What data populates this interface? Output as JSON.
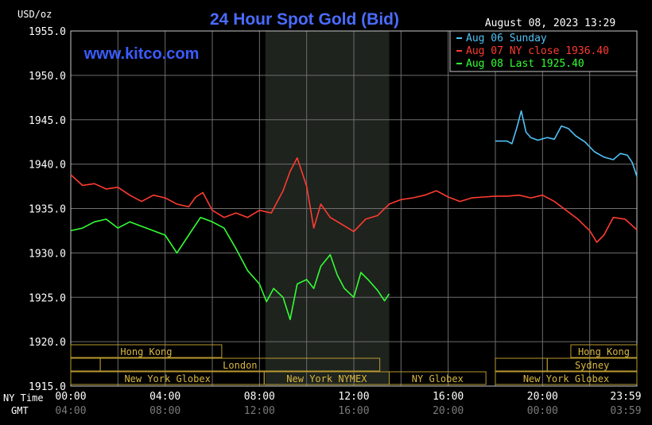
{
  "chart_data": {
    "type": "line",
    "title": "24 Hour Spot Gold (Bid)",
    "unit_label": "USD/oz",
    "watermark": "www.kitco.com",
    "timestamp": "August 08, 2023 13:29",
    "ylim": [
      1915,
      1955
    ],
    "yticks": [
      "1955.0",
      "1950.0",
      "1945.0",
      "1940.0",
      "1935.0",
      "1930.0",
      "1925.0",
      "1920.0",
      "1915.0"
    ],
    "ytick_values": [
      1955,
      1950,
      1945,
      1940,
      1935,
      1930,
      1925,
      1920,
      1915
    ],
    "xlim": [
      0,
      24
    ],
    "xlabel_ny": "NY Time",
    "xlabel_gmt": "GMT",
    "xticks": [
      {
        "h": 0,
        "ny": "00:00",
        "gmt": "04:00"
      },
      {
        "h": 4,
        "ny": "04:00",
        "gmt": "08:00"
      },
      {
        "h": 8,
        "ny": "08:00",
        "gmt": "12:00"
      },
      {
        "h": 12,
        "ny": "12:00",
        "gmt": "16:00"
      },
      {
        "h": 16,
        "ny": "16:00",
        "gmt": "20:00"
      },
      {
        "h": 20,
        "ny": "20:00",
        "gmt": "00:00"
      },
      {
        "h": 24,
        "ny": "23:59",
        "gmt": "03:59"
      }
    ],
    "highlight_range": [
      8.25,
      13.5
    ],
    "legend": [
      {
        "label": "Aug 06 Sunday",
        "color": "#4fc3f7"
      },
      {
        "label": "Aug 07 NY close 1936.40",
        "color": "#ff3b30"
      },
      {
        "label": "Aug 08 Last 1925.40",
        "color": "#33ff33"
      }
    ],
    "series": [
      {
        "name": "Aug 06 Sunday",
        "color": "#4fc3f7",
        "x": [
          18.0,
          18.5,
          18.7,
          18.9,
          19.1,
          19.3,
          19.5,
          19.8,
          20.2,
          20.5,
          20.8,
          21.1,
          21.4,
          21.8,
          22.2,
          22.6,
          23.0,
          23.3,
          23.6,
          23.8,
          24.0
        ],
        "y": [
          1942.6,
          1942.6,
          1942.3,
          1944.0,
          1946.0,
          1943.6,
          1943.0,
          1942.7,
          1943.0,
          1942.8,
          1944.3,
          1944.0,
          1943.2,
          1942.5,
          1941.4,
          1940.8,
          1940.5,
          1941.2,
          1941.0,
          1940.2,
          1938.6
        ]
      },
      {
        "name": "Aug 07 NY close 1936.40",
        "color": "#ff3b30",
        "x": [
          0,
          0.5,
          1.0,
          1.5,
          2.0,
          2.5,
          3.0,
          3.5,
          4.0,
          4.5,
          5.0,
          5.3,
          5.6,
          6.0,
          6.5,
          7.0,
          7.5,
          8.0,
          8.5,
          9.0,
          9.3,
          9.6,
          10.0,
          10.3,
          10.6,
          11.0,
          11.5,
          12.0,
          12.5,
          13.0,
          13.5,
          14.0,
          14.5,
          15.0,
          15.5,
          16.0,
          16.5,
          17.0,
          17.5,
          18.0,
          18.5,
          19.0,
          19.5,
          20.0,
          20.5,
          21.0,
          21.5,
          22.0,
          22.3,
          22.6,
          23.0,
          23.5,
          24.0
        ],
        "y": [
          1938.8,
          1937.6,
          1937.8,
          1937.2,
          1937.4,
          1936.5,
          1935.8,
          1936.5,
          1936.2,
          1935.5,
          1935.2,
          1936.3,
          1936.8,
          1934.8,
          1934.0,
          1934.5,
          1934.0,
          1934.8,
          1934.5,
          1937.0,
          1939.2,
          1940.7,
          1937.5,
          1932.8,
          1935.5,
          1934.0,
          1933.2,
          1932.4,
          1933.8,
          1934.2,
          1935.5,
          1936.0,
          1936.2,
          1936.5,
          1937.0,
          1936.3,
          1935.8,
          1936.2,
          1936.3,
          1936.4,
          1936.4,
          1936.5,
          1936.2,
          1936.5,
          1935.8,
          1934.8,
          1933.8,
          1932.5,
          1931.2,
          1932.0,
          1934.0,
          1933.8,
          1932.6
        ]
      },
      {
        "name": "Aug 08 Last 1925.40",
        "color": "#33ff33",
        "x": [
          0,
          0.5,
          1.0,
          1.5,
          2.0,
          2.5,
          3.0,
          3.5,
          4.0,
          4.5,
          5.0,
          5.5,
          6.0,
          6.5,
          7.0,
          7.5,
          8.0,
          8.3,
          8.6,
          9.0,
          9.3,
          9.6,
          10.0,
          10.3,
          10.6,
          11.0,
          11.3,
          11.6,
          12.0,
          12.3,
          12.6,
          13.0,
          13.3,
          13.5
        ],
        "y": [
          1932.5,
          1932.8,
          1933.5,
          1933.8,
          1932.8,
          1933.5,
          1933.0,
          1932.5,
          1932.0,
          1930.0,
          1932.0,
          1934.0,
          1933.5,
          1932.8,
          1930.5,
          1928.0,
          1926.5,
          1924.5,
          1926.0,
          1925.0,
          1922.5,
          1926.5,
          1927.0,
          1926.0,
          1928.5,
          1929.8,
          1927.5,
          1926.0,
          1925.0,
          1927.8,
          1927.0,
          1925.8,
          1924.6,
          1925.4
        ]
      }
    ],
    "sessions": {
      "row1": [
        {
          "label": "Hong Kong",
          "start": 0,
          "end": 6.4
        },
        {
          "label": "Hong Kong",
          "start": 21.2,
          "end": 24
        }
      ],
      "row2": [
        {
          "label": "London",
          "start": 1.25,
          "end": 13.1
        },
        {
          "label": "Sydney",
          "start": 20.2,
          "end": 24
        }
      ],
      "row3": [
        {
          "label": "New York Globex",
          "start": 0,
          "end": 8.2
        },
        {
          "label": "New York NYMEX",
          "start": 8.2,
          "end": 13.5
        },
        {
          "label": "NY Globex",
          "start": 13.5,
          "end": 17.6
        },
        {
          "label": "New York Globex",
          "start": 18.0,
          "end": 24
        }
      ]
    },
    "grid": true
  }
}
